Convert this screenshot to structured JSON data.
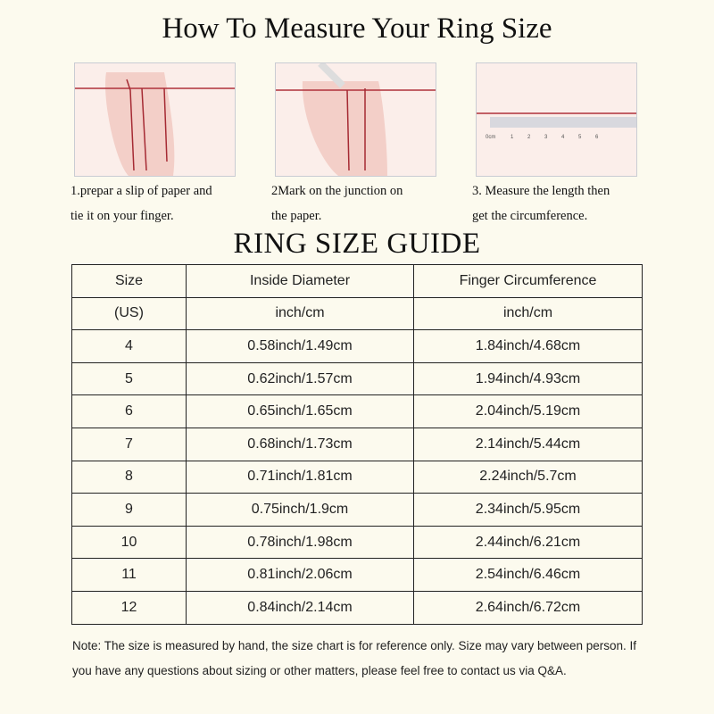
{
  "title": "How To Measure Your Ring Size",
  "steps": [
    {
      "line1": "1.prepar a slip of paper and",
      "line2": "tie it on your finger."
    },
    {
      "line1": "2Mark on the  junction on",
      "line2": "the paper."
    },
    {
      "line1": "3. Measure the length then",
      "line2": "get the circumference."
    }
  ],
  "ruler_labels": [
    "0cm",
    "1",
    "2",
    "3",
    "4",
    "5",
    "6"
  ],
  "guide_title": "RING SIZE  GUIDE",
  "table": {
    "headers": [
      "Size",
      "Inside Diameter",
      "Finger Circumference"
    ],
    "units": [
      "(US)",
      "inch/cm",
      "inch/cm"
    ],
    "rows": [
      [
        "4",
        "0.58inch/1.49cm",
        "1.84inch/4.68cm"
      ],
      [
        "5",
        "0.62inch/1.57cm",
        "1.94inch/4.93cm"
      ],
      [
        "6",
        "0.65inch/1.65cm",
        "2.04inch/5.19cm"
      ],
      [
        "7",
        "0.68inch/1.73cm",
        "2.14inch/5.44cm"
      ],
      [
        "8",
        "0.71inch/1.81cm",
        "2.24inch/5.7cm"
      ],
      [
        "9",
        "0.75inch/1.9cm",
        "2.34inch/5.95cm"
      ],
      [
        "10",
        "0.78inch/1.98cm",
        "2.44inch/6.21cm"
      ],
      [
        "11",
        "0.81inch/2.06cm",
        "2.54inch/6.46cm"
      ],
      [
        "12",
        "0.84inch/2.14cm",
        "2.64inch/6.72cm"
      ]
    ]
  },
  "note": "Note: The size is measured by hand, the size chart is for reference only. Size may vary between person. If you have any questions about sizing or other matters, please feel free to contact us via Q&A.",
  "colors": {
    "background": "#fcfaee",
    "string": "#b0303a"
  }
}
